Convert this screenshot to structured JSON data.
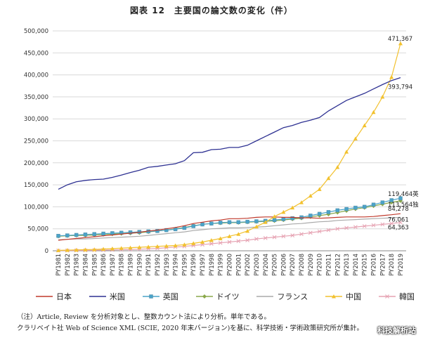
{
  "title": "図表 12　主要国の論文数の変化（件）",
  "notes": [
    "（注）Article, Review を分析対象とし、整数カウント法により分析。単年である。",
    "クラリベイト社 Web of Science XML (SCIE, 2020 年末バージョン)を基に、科学技術・学術政策研究所が集計。"
  ],
  "watermark": "科技解析站",
  "chart_data": {
    "type": "line",
    "title": "図表 12　主要国の論文数の変化（件）",
    "ylim": [
      0,
      500000
    ],
    "yticks": [
      "0",
      "50,000",
      "100,000",
      "150,000",
      "200,000",
      "250,000",
      "300,000",
      "350,000",
      "400,000",
      "450,000",
      "500,000"
    ],
    "grid": true,
    "legend_position": "bottom",
    "categories": [
      "PY1981",
      "PY1982",
      "PY1983",
      "PY1984",
      "PY1985",
      "PY1986",
      "PY1987",
      "PY1988",
      "PY1989",
      "PY1990",
      "PY1991",
      "PY1992",
      "PY1993",
      "PY1994",
      "PY1995",
      "PY1996",
      "PY1997",
      "PY1998",
      "PY1999",
      "PY2000",
      "PY2001",
      "PY2002",
      "PY2003",
      "PY2004",
      "PY2005",
      "PY2006",
      "PY2007",
      "PY2008",
      "PY2009",
      "PY2010",
      "PY2011",
      "PY2012",
      "PY2013",
      "PY2014",
      "PY2015",
      "PY2016",
      "PY2017",
      "PY2018",
      "PY2019"
    ],
    "series": [
      {
        "name": "日本",
        "color": "#c0392b",
        "marker": "none",
        "values": [
          24000,
          26000,
          28000,
          30000,
          32000,
          34000,
          36000,
          38000,
          40000,
          42000,
          45000,
          47000,
          50000,
          53000,
          57000,
          62000,
          65000,
          68000,
          70000,
          73000,
          73000,
          74000,
          76000,
          77000,
          77000,
          76000,
          76000,
          75000,
          75000,
          74000,
          75000,
          76000,
          77000,
          77000,
          77000,
          78000,
          80000,
          82000,
          84278
        ]
      },
      {
        "name": "米国",
        "color": "#2e3192",
        "marker": "none",
        "values": [
          140000,
          150000,
          157000,
          160000,
          162000,
          163000,
          167000,
          172000,
          178000,
          183000,
          190000,
          192000,
          195000,
          198000,
          205000,
          223000,
          224000,
          230000,
          231000,
          235000,
          235000,
          240000,
          250000,
          260000,
          270000,
          280000,
          285000,
          292000,
          297000,
          303000,
          318000,
          330000,
          342000,
          350000,
          358000,
          368000,
          378000,
          387000,
          393794
        ]
      },
      {
        "name": "英国",
        "color": "#4aa3c8",
        "marker": "square",
        "values": [
          34000,
          35000,
          36000,
          37000,
          38000,
          39000,
          40000,
          41000,
          42000,
          43000,
          44000,
          45000,
          47000,
          49000,
          52000,
          56000,
          60000,
          62000,
          64000,
          65000,
          65000,
          66000,
          67000,
          68000,
          70000,
          72000,
          74000,
          76000,
          80000,
          84000,
          88000,
          92000,
          95000,
          98000,
          100000,
          105000,
          110000,
          115000,
          119464
        ]
      },
      {
        "name": "ドイツ",
        "color": "#8aa84b",
        "marker": "diamond",
        "values": [
          33000,
          34000,
          35000,
          35000,
          36000,
          37000,
          38000,
          39000,
          40000,
          41000,
          43000,
          45000,
          47000,
          50000,
          53000,
          57000,
          60000,
          62000,
          63000,
          64000,
          64000,
          65000,
          66000,
          67000,
          68000,
          70000,
          72000,
          74000,
          77000,
          80000,
          83000,
          87000,
          91000,
          95000,
          98000,
          102000,
          106000,
          110000,
          113564
        ]
      },
      {
        "name": "フランス",
        "color": "#aaaaaa",
        "marker": "none",
        "values": [
          25000,
          26000,
          27000,
          27000,
          28000,
          29000,
          30000,
          31000,
          32000,
          33000,
          35000,
          37000,
          39000,
          41000,
          43000,
          46000,
          48000,
          50000,
          51000,
          52000,
          52000,
          53000,
          54000,
          55000,
          57000,
          59000,
          61000,
          62000,
          64000,
          66000,
          67000,
          69000,
          70000,
          71000,
          72000,
          73000,
          74000,
          75000,
          76061
        ]
      },
      {
        "name": "中国",
        "color": "#f2c12e",
        "marker": "triangle",
        "values": [
          1000,
          1500,
          2000,
          2500,
          3000,
          4000,
          5000,
          6000,
          7000,
          8000,
          9000,
          10000,
          11000,
          12000,
          14000,
          17000,
          20000,
          24000,
          28000,
          33000,
          38000,
          45000,
          55000,
          65000,
          78000,
          88000,
          98000,
          110000,
          125000,
          140000,
          165000,
          190000,
          225000,
          255000,
          285000,
          315000,
          350000,
          395000,
          471367
        ]
      },
      {
        "name": "韓国",
        "color": "#e6a2b2",
        "marker": "x",
        "values": [
          500,
          600,
          800,
          1000,
          1300,
          1600,
          2000,
          2500,
          3000,
          3500,
          4500,
          5500,
          7000,
          8500,
          10000,
          12000,
          14000,
          16000,
          18000,
          20000,
          22000,
          24000,
          27000,
          29000,
          31000,
          33000,
          35000,
          38000,
          41000,
          44000,
          47000,
          50000,
          52000,
          54000,
          56000,
          58000,
          60000,
          62000,
          64363
        ]
      }
    ],
    "end_labels": [
      {
        "text": "471,367",
        "series": "中国"
      },
      {
        "text": "393,794",
        "series": "米国"
      },
      {
        "text": "119,464英",
        "series": "英国"
      },
      {
        "text": "113,564独",
        "series": "ドイツ"
      },
      {
        "text": "84,278",
        "series": "日本"
      },
      {
        "text": "76,061",
        "series": "フランス"
      },
      {
        "text": "64,363",
        "series": "韓国"
      }
    ]
  }
}
